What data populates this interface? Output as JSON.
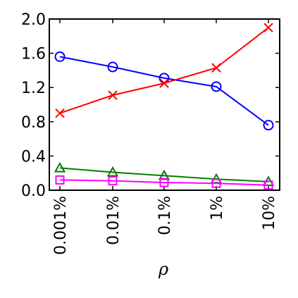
{
  "chart_data": {
    "type": "line",
    "categories": [
      "0.001%",
      "0.01%",
      "0.1%",
      "1%",
      "10%"
    ],
    "xlabel": "ρ",
    "ylabel": "",
    "ylim": [
      0,
      2.0
    ],
    "yticks": [
      "0.0",
      "0.4",
      "0.8",
      "1.2",
      "1.6",
      "2.0"
    ],
    "grid": false,
    "series": [
      {
        "color": "#0000ff",
        "marker": "circle",
        "values": [
          1.56,
          1.44,
          1.31,
          1.21,
          0.76
        ]
      },
      {
        "color": "#ff0000",
        "marker": "x",
        "values": [
          0.9,
          1.11,
          1.25,
          1.43,
          1.9
        ]
      },
      {
        "color": "#008000",
        "marker": "triangle",
        "values": [
          0.26,
          0.21,
          0.17,
          0.13,
          0.1
        ]
      },
      {
        "color": "#ff00ff",
        "marker": "square",
        "values": [
          0.12,
          0.11,
          0.09,
          0.08,
          0.06
        ]
      }
    ]
  }
}
